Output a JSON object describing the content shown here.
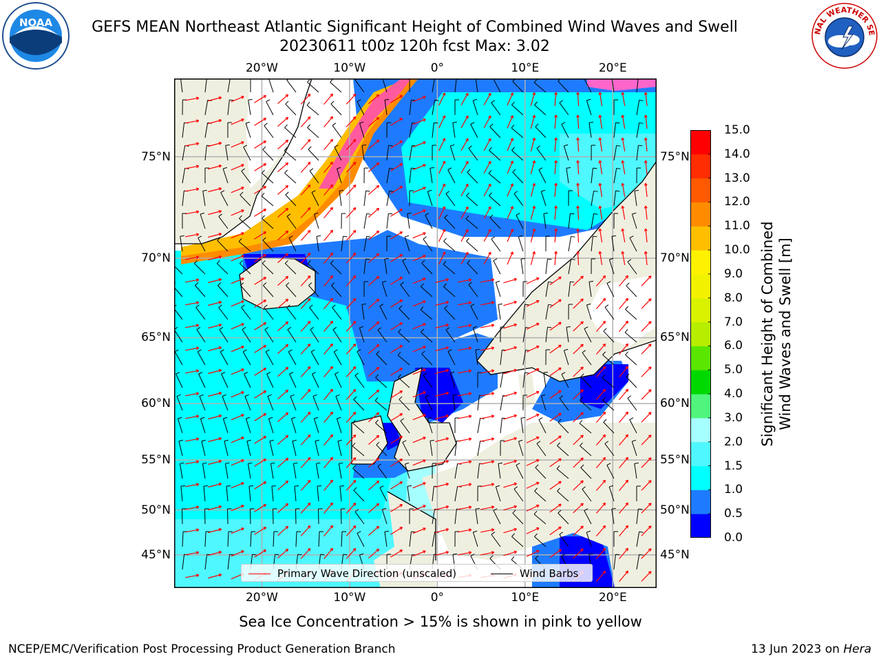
{
  "title": {
    "line1": "GEFS MEAN Northeast Atlantic Significant Height of Combined Wind Waves and Swell",
    "line2": "20230611 t00z 120h fcst   Max: 3.02"
  },
  "logos": {
    "noaa": {
      "icon": "noaa-logo",
      "text": "NOAA"
    },
    "nws": {
      "icon": "nws-logo",
      "text": "NATIONAL WEATHER SERVICE"
    }
  },
  "map": {
    "lon_range": [
      -30,
      25
    ],
    "lat_range": [
      41,
      78
    ],
    "lon_ticks": [
      {
        "value": -20,
        "label": "20°W"
      },
      {
        "value": -10,
        "label": "10°W"
      },
      {
        "value": 0,
        "label": "0°"
      },
      {
        "value": 10,
        "label": "10°E"
      },
      {
        "value": 20,
        "label": "20°E"
      }
    ],
    "lat_ticks": [
      {
        "value": 75,
        "label": "75°N"
      },
      {
        "value": 70,
        "label": "70°N"
      },
      {
        "value": 65,
        "label": "65°N"
      },
      {
        "value": 60,
        "label": "60°N"
      },
      {
        "value": 55,
        "label": "55°N"
      },
      {
        "value": 50,
        "label": "50°N"
      },
      {
        "value": 45,
        "label": "45°N"
      }
    ],
    "colors": {
      "land": "#efefe0",
      "grid": "#b0b0b0",
      "coast": "#000000",
      "wave_arrow": "#ff0000",
      "wind_barb": "#000000"
    }
  },
  "legend": {
    "items": [
      {
        "label": "Primary Wave Direction (unscaled)",
        "color": "#ff0000"
      },
      {
        "label": "Wind Barbs",
        "color": "#000000"
      }
    ]
  },
  "colorbar": {
    "label_line1": "Significant Height of Combined",
    "label_line2": "Wind Waves and Swell [m]",
    "ticks": [
      "0.0",
      "0.5",
      "1.0",
      "1.5",
      "2.0",
      "3.0",
      "4.0",
      "5.0",
      "6.0",
      "7.0",
      "8.0",
      "9.0",
      "10.0",
      "11.0",
      "12.0",
      "13.0",
      "14.0",
      "15.0"
    ],
    "colors": [
      "#0000ff",
      "#1e7bff",
      "#00ffff",
      "#4ff7ff",
      "#a6ffff",
      "#50f57d",
      "#00d900",
      "#5ae600",
      "#b7ee00",
      "#d9f200",
      "#f2f200",
      "#fff200",
      "#ffbe00",
      "#ff8c00",
      "#ff5a00",
      "#ff2d00",
      "#ff0000"
    ]
  },
  "sea_ice_note": "Sea Ice Concentration > 15% is shown in pink to yellow",
  "footer": {
    "left": "NCEP/EMC/Verification Post Processing Product Generation Branch",
    "right_prefix": "13 Jun 2023 on ",
    "right_machine": "Hera"
  }
}
